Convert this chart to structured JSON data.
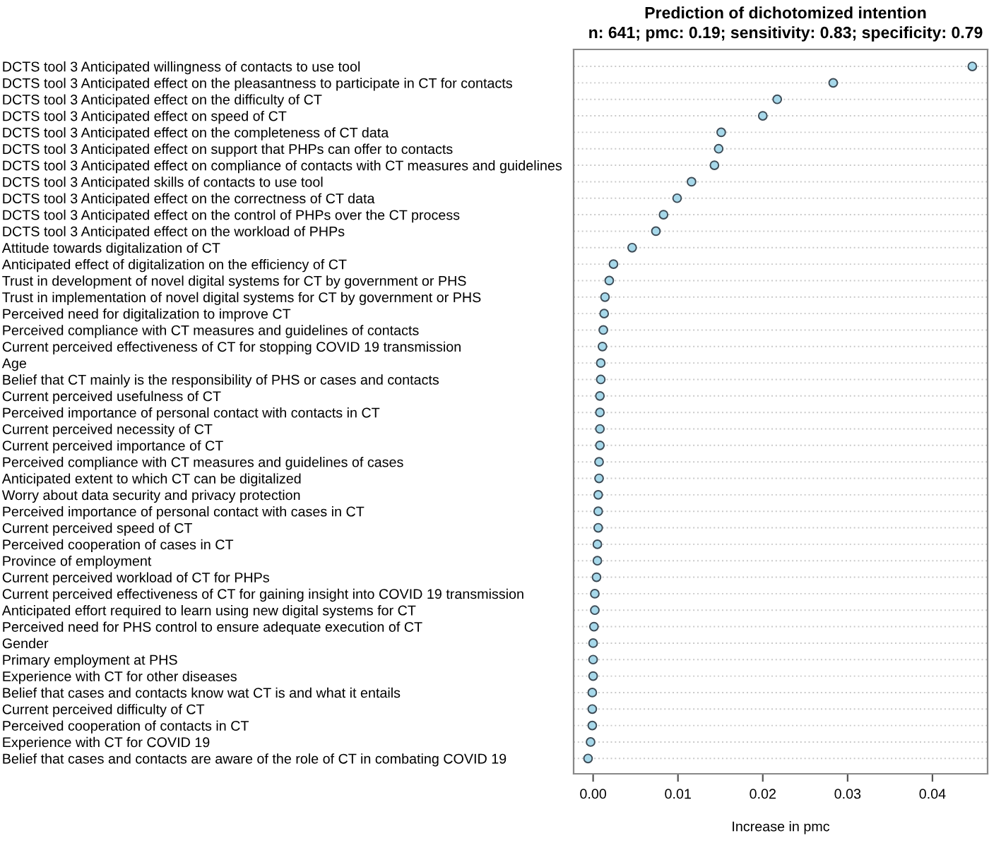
{
  "chart_data": {
    "type": "scatter",
    "title": "Prediction of dichotomized intention",
    "subtitle": "n: 641; pmc: 0.19; sensitivity: 0.83; specificity: 0.79",
    "xlabel": "Increase in pmc",
    "orientation": "horizontal",
    "categories": [
      "DCTS tool 3 Anticipated willingness of contacts to use tool",
      "DCTS tool 3 Anticipated effect on the pleasantness to participate in CT for contacts",
      "DCTS tool 3 Anticipated effect on the difficulty of CT",
      "DCTS tool 3 Anticipated effect on speed of CT",
      "DCTS tool 3 Anticipated effect on the completeness of CT data",
      "DCTS tool 3 Anticipated effect on support that PHPs can offer to contacts",
      "DCTS tool 3 Anticipated effect on compliance of contacts with CT measures and guidelines",
      "DCTS tool 3 Anticipated skills of contacts to use tool",
      "DCTS tool 3 Anticipated effect on the correctness of CT data",
      "DCTS tool 3 Anticipated effect on the control of PHPs over the CT process",
      "DCTS tool 3 Anticipated effect on the workload of PHPs",
      "Attitude towards digitalization of CT",
      "Anticipated effect of digitalization on the efficiency of CT",
      "Trust in development of novel digital systems for CT by government or PHS",
      "Trust in implementation of novel digital systems for CT by government or PHS",
      "Perceived need for digitalization to improve CT",
      "Perceived compliance with CT measures and guidelines of contacts",
      "Current perceived effectiveness of CT for stopping COVID 19 transmission",
      "Age",
      "Belief that CT mainly is the responsibility of PHS or cases and contacts",
      "Current perceived usefulness of CT",
      "Perceived importance of personal contact with contacts in CT",
      "Current perceived necessity of CT",
      "Current perceived importance of CT",
      "Perceived compliance with CT measures and guidelines of cases",
      "Anticipated extent to which CT can be digitalized",
      "Worry about data security and privacy protection",
      "Perceived importance of personal contact with cases in CT",
      "Current perceived speed of CT",
      "Perceived cooperation of cases in CT",
      "Province of employment",
      "Current perceived workload of CT for PHPs",
      "Current perceived effectiveness of CT for gaining insight into COVID 19 transmission",
      "Anticipated effort required to learn using new digital systems for CT",
      "Perceived need for PHS control to ensure adequate execution of CT",
      "Gender",
      "Primary employment at PHS",
      "Experience with CT for other diseases",
      "Belief that cases and contacts know wat CT is and what it entails",
      "Current perceived difficulty of CT",
      "Perceived cooperation of contacts in CT",
      "Experience with CT for COVID 19",
      "Belief that cases and contacts are aware of the role of CT in combating COVID 19"
    ],
    "series": [
      {
        "color": "#a6d8ea",
        "values": [
          0.0447,
          0.0283,
          0.0217,
          0.02,
          0.0151,
          0.0148,
          0.0143,
          0.0116,
          0.0099,
          0.0083,
          0.0074,
          0.0046,
          0.0024,
          0.0019,
          0.0014,
          0.0013,
          0.0012,
          0.0011,
          0.0009,
          0.0009,
          0.0008,
          0.0008,
          0.0008,
          0.0008,
          0.0007,
          0.0007,
          0.0006,
          0.0006,
          0.0006,
          0.0005,
          0.0005,
          0.0004,
          0.0002,
          0.0002,
          0.0001,
          0.0,
          0.0,
          0.0,
          -0.0001,
          -0.0001,
          -0.0001,
          -0.0003,
          -0.0006
        ]
      }
    ],
    "xlim": [
      -0.0023,
      0.0465
    ],
    "xticks": [
      {
        "value": 0,
        "label": "0.00"
      },
      {
        "value": 0.01,
        "label": "0.01"
      },
      {
        "value": 0.02,
        "label": "0.02"
      },
      {
        "value": 0.03,
        "label": "0.03"
      },
      {
        "value": 0.04,
        "label": "0.04"
      }
    ],
    "grid": "y",
    "marker": "circle",
    "legend": false
  }
}
